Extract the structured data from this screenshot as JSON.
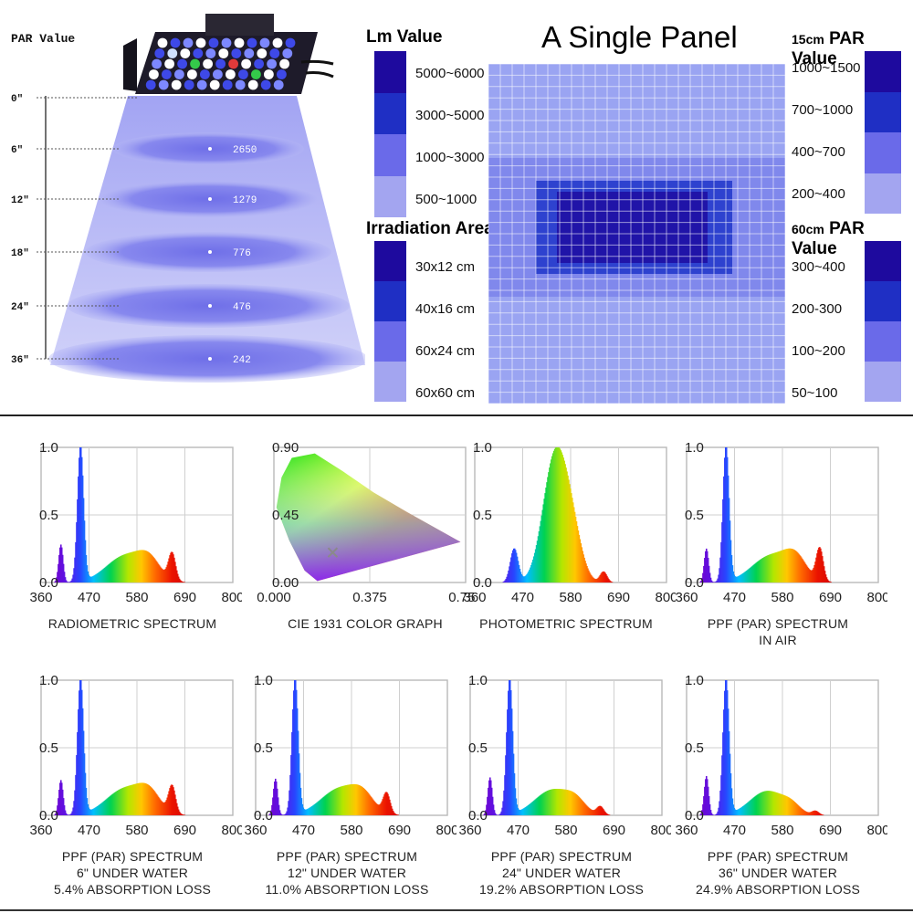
{
  "colors": {
    "panel_dark": "#1e1b2a",
    "legend": [
      "#1e0a9e",
      "#1f2fc4",
      "#6a6ae9",
      "#a3a5f0"
    ],
    "grid_bg": "#8e98f0",
    "beam": "#8d8ff0"
  },
  "chart_data": [
    {
      "type": "diagram",
      "title": "PAR Value",
      "heights": [
        "0″",
        "6″",
        "12″",
        "18″",
        "24″",
        "36″"
      ],
      "values": [
        "2650",
        "1279",
        "776",
        "476",
        "242"
      ]
    },
    {
      "type": "heatmap",
      "title": "A Single Panel",
      "lm_legend": {
        "title": "Lm Value",
        "entries": [
          "5000~6000",
          "3000~5000",
          "1000~3000",
          "500~1000"
        ]
      },
      "area_legend": {
        "title": "Irradiation Area",
        "entries": [
          "30x12 cm",
          "40x16 cm",
          "60x24 cm",
          "60x60 cm"
        ]
      },
      "par15_legend": {
        "title_prefix": "15cm",
        "title": "PAR Value",
        "entries": [
          "1000~1500",
          "700~1000",
          "400~700",
          "200~400"
        ]
      },
      "par60_legend": {
        "title_prefix": "60cm",
        "title": "PAR Value",
        "entries": [
          "300~400",
          "200-300",
          "100~200",
          "50~100"
        ]
      }
    },
    {
      "type": "line",
      "id": "radiometric",
      "title_lines": [
        "RADIOMETRIC SPECTRUM"
      ],
      "x_ticks": [
        "360",
        "470",
        "580",
        "690",
        "800"
      ],
      "y_ticks": [
        "0.0",
        "0.5",
        "1.0"
      ],
      "xlim": [
        360,
        800
      ],
      "ylim": [
        0,
        1
      ],
      "peaks": [
        {
          "x": 405,
          "y": 0.28,
          "w": 5
        },
        {
          "x": 450,
          "y": 1.0,
          "w": 7
        },
        {
          "x": 555,
          "y": 0.2,
          "w": 45
        },
        {
          "x": 608,
          "y": 0.12,
          "w": 25
        },
        {
          "x": 660,
          "y": 0.2,
          "w": 8
        }
      ]
    },
    {
      "type": "scatter",
      "id": "cie",
      "title_lines": [
        "CIE 1931 COLOR GRAPH"
      ],
      "x_ticks": [
        "0.000",
        "0.375",
        "0.750"
      ],
      "y_ticks": [
        "0.00",
        "0.45",
        "0.90"
      ],
      "xlim": [
        0,
        0.75
      ],
      "ylim": [
        0,
        0.9
      ],
      "point": {
        "x": 0.23,
        "y": 0.2
      }
    },
    {
      "type": "line",
      "id": "photometric",
      "title_lines": [
        "PHOTOMETRIC SPECTRUM"
      ],
      "x_ticks": [
        "360",
        "470",
        "580",
        "690",
        "800"
      ],
      "y_ticks": [
        "0.0",
        "0.5",
        "1.0"
      ],
      "xlim": [
        360,
        800
      ],
      "ylim": [
        0,
        1
      ],
      "peaks": [
        {
          "x": 450,
          "y": 0.25,
          "w": 9
        },
        {
          "x": 545,
          "y": 0.95,
          "w": 28
        },
        {
          "x": 585,
          "y": 0.25,
          "w": 22
        },
        {
          "x": 655,
          "y": 0.08,
          "w": 8
        }
      ]
    },
    {
      "type": "line",
      "id": "ppf-air",
      "title_lines": [
        "PPF (PAR) SPECTRUM",
        "IN AIR"
      ],
      "x_ticks": [
        "360",
        "470",
        "580",
        "690",
        "800"
      ],
      "y_ticks": [
        "0.0",
        "0.5",
        "1.0"
      ],
      "xlim": [
        360,
        800
      ],
      "ylim": [
        0,
        1
      ],
      "peaks": [
        {
          "x": 405,
          "y": 0.25,
          "w": 5
        },
        {
          "x": 450,
          "y": 1.0,
          "w": 7
        },
        {
          "x": 555,
          "y": 0.2,
          "w": 45
        },
        {
          "x": 610,
          "y": 0.14,
          "w": 25
        },
        {
          "x": 665,
          "y": 0.24,
          "w": 8
        }
      ]
    },
    {
      "type": "line",
      "id": "ppf-6",
      "title_lines": [
        "PPF (PAR) SPECTRUM",
        "6\" UNDER WATER",
        "5.4% ABSORPTION LOSS"
      ],
      "x_ticks": [
        "360",
        "470",
        "580",
        "690",
        "800"
      ],
      "y_ticks": [
        "0.0",
        "0.5",
        "1.0"
      ],
      "xlim": [
        360,
        800
      ],
      "ylim": [
        0,
        1
      ],
      "peaks": [
        {
          "x": 405,
          "y": 0.26,
          "w": 5
        },
        {
          "x": 450,
          "y": 1.0,
          "w": 7
        },
        {
          "x": 555,
          "y": 0.2,
          "w": 45
        },
        {
          "x": 608,
          "y": 0.12,
          "w": 25
        },
        {
          "x": 660,
          "y": 0.2,
          "w": 8
        }
      ]
    },
    {
      "type": "line",
      "id": "ppf-12",
      "title_lines": [
        "PPF (PAR) SPECTRUM",
        "12\" UNDER WATER",
        "11.0% ABSORPTION LOSS"
      ],
      "x_ticks": [
        "360",
        "470",
        "580",
        "690",
        "800"
      ],
      "y_ticks": [
        "0.0",
        "0.5",
        "1.0"
      ],
      "xlim": [
        360,
        800
      ],
      "ylim": [
        0,
        1
      ],
      "peaks": [
        {
          "x": 405,
          "y": 0.27,
          "w": 5
        },
        {
          "x": 450,
          "y": 1.0,
          "w": 7
        },
        {
          "x": 555,
          "y": 0.2,
          "w": 45
        },
        {
          "x": 606,
          "y": 0.1,
          "w": 25
        },
        {
          "x": 660,
          "y": 0.15,
          "w": 8
        }
      ]
    },
    {
      "type": "line",
      "id": "ppf-24",
      "title_lines": [
        "PPF (PAR) SPECTRUM",
        "24\" UNDER WATER",
        "19.2% ABSORPTION LOSS"
      ],
      "x_ticks": [
        "360",
        "470",
        "580",
        "690",
        "800"
      ],
      "y_ticks": [
        "0.0",
        "0.5",
        "1.0"
      ],
      "xlim": [
        360,
        800
      ],
      "ylim": [
        0,
        1
      ],
      "peaks": [
        {
          "x": 405,
          "y": 0.28,
          "w": 5
        },
        {
          "x": 450,
          "y": 1.0,
          "w": 7
        },
        {
          "x": 550,
          "y": 0.19,
          "w": 42
        },
        {
          "x": 602,
          "y": 0.07,
          "w": 22
        },
        {
          "x": 658,
          "y": 0.06,
          "w": 8
        }
      ]
    },
    {
      "type": "line",
      "id": "ppf-36",
      "title_lines": [
        "PPF (PAR) SPECTRUM",
        "36\" UNDER WATER",
        "24.9% ABSORPTION LOSS"
      ],
      "x_ticks": [
        "360",
        "470",
        "580",
        "690",
        "800"
      ],
      "y_ticks": [
        "0.0",
        "0.5",
        "1.0"
      ],
      "xlim": [
        360,
        800
      ],
      "ylim": [
        0,
        1
      ],
      "peaks": [
        {
          "x": 405,
          "y": 0.29,
          "w": 5
        },
        {
          "x": 450,
          "y": 1.0,
          "w": 7
        },
        {
          "x": 545,
          "y": 0.18,
          "w": 40
        },
        {
          "x": 600,
          "y": 0.05,
          "w": 20
        },
        {
          "x": 655,
          "y": 0.03,
          "w": 8
        }
      ]
    }
  ]
}
